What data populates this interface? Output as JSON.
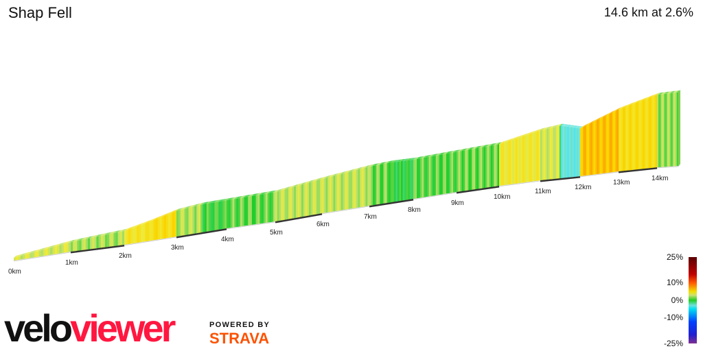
{
  "header": {
    "title": "Shap Fell",
    "summary": "14.6 km at 2.6%"
  },
  "legend": {
    "labels": [
      "25%",
      "10%",
      "0%",
      "-10%",
      "-25%"
    ]
  },
  "branding": {
    "logo_part1": "velo",
    "logo_part2": "viewer",
    "powered_by": "POWERED BY",
    "strava": "STRAVA"
  },
  "chart_data": {
    "type": "area",
    "title": "Shap Fell",
    "xlabel": "",
    "ylabel": "",
    "x_tick_labels": [
      "0km",
      "1km",
      "2km",
      "3km",
      "4km",
      "5km",
      "6km",
      "7km",
      "8km",
      "9km",
      "10km",
      "11km",
      "12km",
      "13km",
      "14km"
    ],
    "distance_km": [
      0,
      1,
      2,
      2.5,
      3,
      3.5,
      4,
      5,
      6,
      7,
      7.5,
      8,
      9,
      10,
      11,
      11.5,
      12,
      13,
      14,
      14.6
    ],
    "elevation_gain_m": [
      0,
      30,
      50,
      75,
      105,
      116,
      117,
      125,
      150,
      175,
      180,
      178,
      185,
      195,
      240,
      255,
      232,
      310,
      370,
      380
    ],
    "color_scale": {
      "type": "gradient-percent",
      "range": [
        -25,
        25
      ]
    }
  }
}
